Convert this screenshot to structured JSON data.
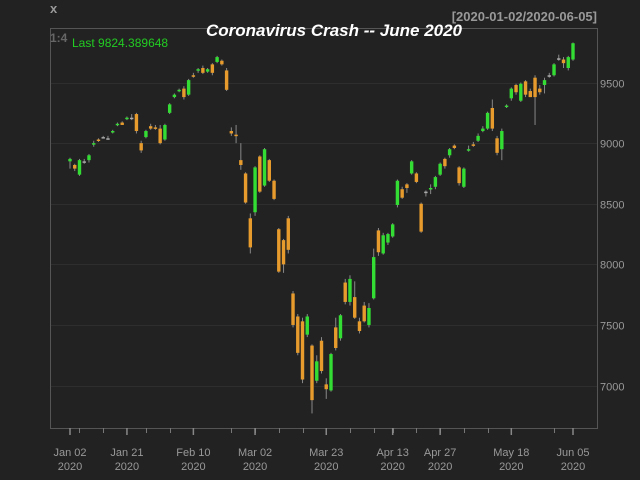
{
  "chart_data": {
    "type": "candlestick",
    "title": "Coronavirus Crash -- June 2020",
    "corner_label": "x",
    "range_label": "[2020-01-02/2020-06-05]",
    "subset_label": "1:4",
    "last_label": "Last 9824.389648",
    "ylim": [
      6650,
      9950
    ],
    "yticks": [
      7000,
      7500,
      8000,
      8500,
      9000,
      9500
    ],
    "xticks": [
      {
        "date": "2020-01-02",
        "line1": "Jan 02",
        "line2": "2020"
      },
      {
        "date": "2020-01-21",
        "line1": "Jan 21",
        "line2": "2020"
      },
      {
        "date": "2020-02-10",
        "line1": "Feb 10",
        "line2": "2020"
      },
      {
        "date": "2020-03-02",
        "line1": "Mar 02",
        "line2": "2020"
      },
      {
        "date": "2020-03-23",
        "line1": "Mar 23",
        "line2": "2020"
      },
      {
        "date": "2020-04-13",
        "line1": "Apr 13",
        "line2": "2020"
      },
      {
        "date": "2020-04-27",
        "line1": "Apr 27",
        "line2": "2020"
      },
      {
        "date": "2020-05-18",
        "line1": "May 18",
        "line2": "2020"
      },
      {
        "date": "2020-06-05",
        "line1": "Jun 05",
        "line2": "2020"
      }
    ],
    "colors": {
      "up": "#33dd33",
      "down": "#e69b2c",
      "doji": "#aaaaaa",
      "title": "#ffffff",
      "frame": "#555555",
      "grid": "#2e2e2e",
      "label": "#999999",
      "last": "#22cc22"
    },
    "ohlc": [
      [
        "2020-01-02",
        8850,
        8880,
        8790,
        8870
      ],
      [
        "2020-01-03",
        8820,
        8830,
        8770,
        8790
      ],
      [
        "2020-01-06",
        8740,
        8870,
        8730,
        8860
      ],
      [
        "2020-01-07",
        8850,
        8870,
        8830,
        8850
      ],
      [
        "2020-01-08",
        8860,
        8910,
        8840,
        8900
      ],
      [
        "2020-01-09",
        8990,
        9020,
        8970,
        9000
      ],
      [
        "2020-01-10",
        9030,
        9040,
        9010,
        9020
      ],
      [
        "2020-01-13",
        9050,
        9060,
        9040,
        9050
      ],
      [
        "2020-01-14",
        9040,
        9060,
        9030,
        9040
      ],
      [
        "2020-01-15",
        9090,
        9110,
        9080,
        9100
      ],
      [
        "2020-01-16",
        9150,
        9170,
        9140,
        9160
      ],
      [
        "2020-01-17",
        9170,
        9180,
        9150,
        9150
      ],
      [
        "2020-01-21",
        9200,
        9220,
        9190,
        9210
      ],
      [
        "2020-01-22",
        9210,
        9240,
        9190,
        9210
      ],
      [
        "2020-01-23",
        9240,
        9250,
        9080,
        9100
      ],
      [
        "2020-01-24",
        9000,
        9020,
        8920,
        8940
      ],
      [
        "2020-01-27",
        9050,
        9110,
        9040,
        9100
      ],
      [
        "2020-01-28",
        9140,
        9160,
        9110,
        9120
      ],
      [
        "2020-01-29",
        9130,
        9150,
        9110,
        9120
      ],
      [
        "2020-01-30",
        9120,
        9150,
        8990,
        9000
      ],
      [
        "2020-01-31",
        9030,
        9160,
        9020,
        9150
      ],
      [
        "2020-02-03",
        9250,
        9330,
        9240,
        9320
      ],
      [
        "2020-02-04",
        9380,
        9410,
        9370,
        9400
      ],
      [
        "2020-02-05",
        9430,
        9450,
        9420,
        9440
      ],
      [
        "2020-02-06",
        9450,
        9470,
        9360,
        9380
      ],
      [
        "2020-02-07",
        9400,
        9530,
        9390,
        9520
      ],
      [
        "2020-02-10",
        9560,
        9580,
        9540,
        9550
      ],
      [
        "2020-02-11",
        9600,
        9620,
        9580,
        9610
      ],
      [
        "2020-02-12",
        9620,
        9640,
        9570,
        9580
      ],
      [
        "2020-02-13",
        9590,
        9620,
        9580,
        9610
      ],
      [
        "2020-02-14",
        9650,
        9660,
        9560,
        9580
      ],
      [
        "2020-02-18",
        9670,
        9720,
        9660,
        9710
      ],
      [
        "2020-02-19",
        9680,
        9690,
        9640,
        9650
      ],
      [
        "2020-02-20",
        9600,
        9620,
        9430,
        9440
      ],
      [
        "2020-02-24",
        9100,
        9130,
        9060,
        9080
      ],
      [
        "2020-02-25",
        9070,
        9150,
        9000,
        9060
      ],
      [
        "2020-02-26",
        8860,
        9000,
        8780,
        8820
      ],
      [
        "2020-02-27",
        8750,
        8760,
        8500,
        8510
      ],
      [
        "2020-02-28",
        8380,
        8420,
        8090,
        8140
      ],
      [
        "2020-03-02",
        8430,
        8810,
        8400,
        8800
      ],
      [
        "2020-03-03",
        8890,
        8900,
        8590,
        8600
      ],
      [
        "2020-03-04",
        8650,
        8960,
        8640,
        8950
      ],
      [
        "2020-03-05",
        8860,
        8870,
        8680,
        8690
      ],
      [
        "2020-03-06",
        8690,
        8700,
        8530,
        8540
      ],
      [
        "2020-03-09",
        8290,
        8300,
        7930,
        7940
      ],
      [
        "2020-03-10",
        8200,
        8210,
        7930,
        8000
      ],
      [
        "2020-03-11",
        8380,
        8400,
        8090,
        8120
      ],
      [
        "2020-03-12",
        7760,
        7780,
        7480,
        7500
      ],
      [
        "2020-03-13",
        7570,
        7590,
        7250,
        7270
      ],
      [
        "2020-03-16",
        7530,
        7560,
        7020,
        7050
      ],
      [
        "2020-03-17",
        7420,
        7590,
        7400,
        7570
      ],
      [
        "2020-03-18",
        7330,
        7340,
        6770,
        6880
      ],
      [
        "2020-03-19",
        7040,
        7250,
        7020,
        7200
      ],
      [
        "2020-03-20",
        7370,
        7400,
        7100,
        7120
      ],
      [
        "2020-03-23",
        7010,
        7060,
        6890,
        6970
      ],
      [
        "2020-03-24",
        6960,
        7270,
        6950,
        7260
      ],
      [
        "2020-03-25",
        7480,
        7560,
        7290,
        7310
      ],
      [
        "2020-03-26",
        7390,
        7590,
        7370,
        7580
      ],
      [
        "2020-03-27",
        7850,
        7880,
        7670,
        7690
      ],
      [
        "2020-03-30",
        7690,
        7910,
        7660,
        7880
      ],
      [
        "2020-03-31",
        7730,
        7860,
        7550,
        7560
      ],
      [
        "2020-04-01",
        7530,
        7560,
        7430,
        7450
      ],
      [
        "2020-04-02",
        7660,
        7690,
        7520,
        7530
      ],
      [
        "2020-04-03",
        7500,
        7680,
        7480,
        7640
      ],
      [
        "2020-04-06",
        7720,
        8130,
        7710,
        8060
      ],
      [
        "2020-04-07",
        8280,
        8300,
        8070,
        8100
      ],
      [
        "2020-04-08",
        8090,
        8260,
        8080,
        8240
      ],
      [
        "2020-04-09",
        8180,
        8260,
        8160,
        8250
      ],
      [
        "2020-04-13",
        8230,
        8340,
        8220,
        8330
      ],
      [
        "2020-04-14",
        8490,
        8700,
        8470,
        8690
      ],
      [
        "2020-04-15",
        8620,
        8640,
        8540,
        8550
      ],
      [
        "2020-04-16",
        8660,
        8670,
        8590,
        8630
      ],
      [
        "2020-04-17",
        8750,
        8860,
        8740,
        8850
      ],
      [
        "2020-04-20",
        8750,
        8760,
        8670,
        8680
      ],
      [
        "2020-04-21",
        8500,
        8510,
        8260,
        8270
      ],
      [
        "2020-04-22",
        8600,
        8610,
        8560,
        8600
      ],
      [
        "2020-04-23",
        8620,
        8660,
        8580,
        8630
      ],
      [
        "2020-04-24",
        8640,
        8730,
        8620,
        8720
      ],
      [
        "2020-04-27",
        8740,
        8840,
        8730,
        8830
      ],
      [
        "2020-04-28",
        8870,
        8880,
        8790,
        8810
      ],
      [
        "2020-04-29",
        8900,
        8960,
        8880,
        8950
      ],
      [
        "2020-04-30",
        8980,
        8990,
        8950,
        8960
      ],
      [
        "2020-05-01",
        8800,
        8810,
        8650,
        8670
      ],
      [
        "2020-05-04",
        8640,
        8800,
        8630,
        8790
      ],
      [
        "2020-05-05",
        8940,
        8980,
        8930,
        8950
      ],
      [
        "2020-05-06",
        8990,
        9010,
        8970,
        8980
      ],
      [
        "2020-05-07",
        9020,
        9080,
        9010,
        9060
      ],
      [
        "2020-05-08",
        9100,
        9140,
        9090,
        9120
      ],
      [
        "2020-05-11",
        9120,
        9260,
        9110,
        9250
      ],
      [
        "2020-05-12",
        9290,
        9360,
        9100,
        9120
      ],
      [
        "2020-05-13",
        9040,
        9060,
        8900,
        8920
      ],
      [
        "2020-05-14",
        8950,
        9120,
        8860,
        9100
      ],
      [
        "2020-05-15",
        9300,
        9320,
        9290,
        9310
      ],
      [
        "2020-05-18",
        9370,
        9460,
        9350,
        9450
      ],
      [
        "2020-05-19",
        9480,
        9490,
        9400,
        9420
      ],
      [
        "2020-05-20",
        9350,
        9500,
        9340,
        9490
      ],
      [
        "2020-05-21",
        9510,
        9520,
        9380,
        9400
      ],
      [
        "2020-05-22",
        9430,
        9450,
        9380,
        9380
      ],
      [
        "2020-05-26",
        9540,
        9560,
        9150,
        9380
      ],
      [
        "2020-05-27",
        9450,
        9480,
        9400,
        9420
      ],
      [
        "2020-05-28",
        9480,
        9540,
        9410,
        9520
      ],
      [
        "2020-05-29",
        9560,
        9580,
        9540,
        9560
      ],
      [
        "2020-06-01",
        9560,
        9660,
        9550,
        9650
      ],
      [
        "2020-06-02",
        9700,
        9730,
        9680,
        9700
      ],
      [
        "2020-06-03",
        9690,
        9710,
        9620,
        9660
      ],
      [
        "2020-06-04",
        9620,
        9720,
        9600,
        9710
      ],
      [
        "2020-06-05",
        9690,
        9830,
        9680,
        9824.389648
      ]
    ]
  }
}
